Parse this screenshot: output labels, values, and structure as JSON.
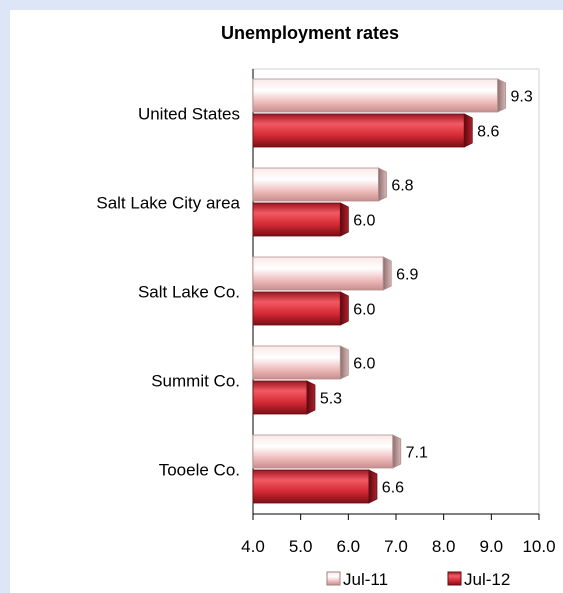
{
  "chart_data": {
    "type": "bar",
    "orientation": "horizontal",
    "title": "Unemployment rates",
    "categories": [
      "United States",
      "Salt Lake City area",
      "Salt Lake Co.",
      "Summit Co.",
      "Tooele Co."
    ],
    "series": [
      {
        "name": "Jul-11",
        "values": [
          9.3,
          6.8,
          6.9,
          6.0,
          7.1
        ],
        "color": "#f2c9c9"
      },
      {
        "name": "Jul-12",
        "values": [
          8.6,
          6.0,
          6.0,
          5.3,
          6.6
        ],
        "color": "#d42a35"
      }
    ],
    "xlim": [
      4.0,
      10.0
    ],
    "xticks": [
      "4.0",
      "5.0",
      "6.0",
      "7.0",
      "8.0",
      "9.0",
      "10.0"
    ],
    "grid": false,
    "legend": "bottom"
  }
}
